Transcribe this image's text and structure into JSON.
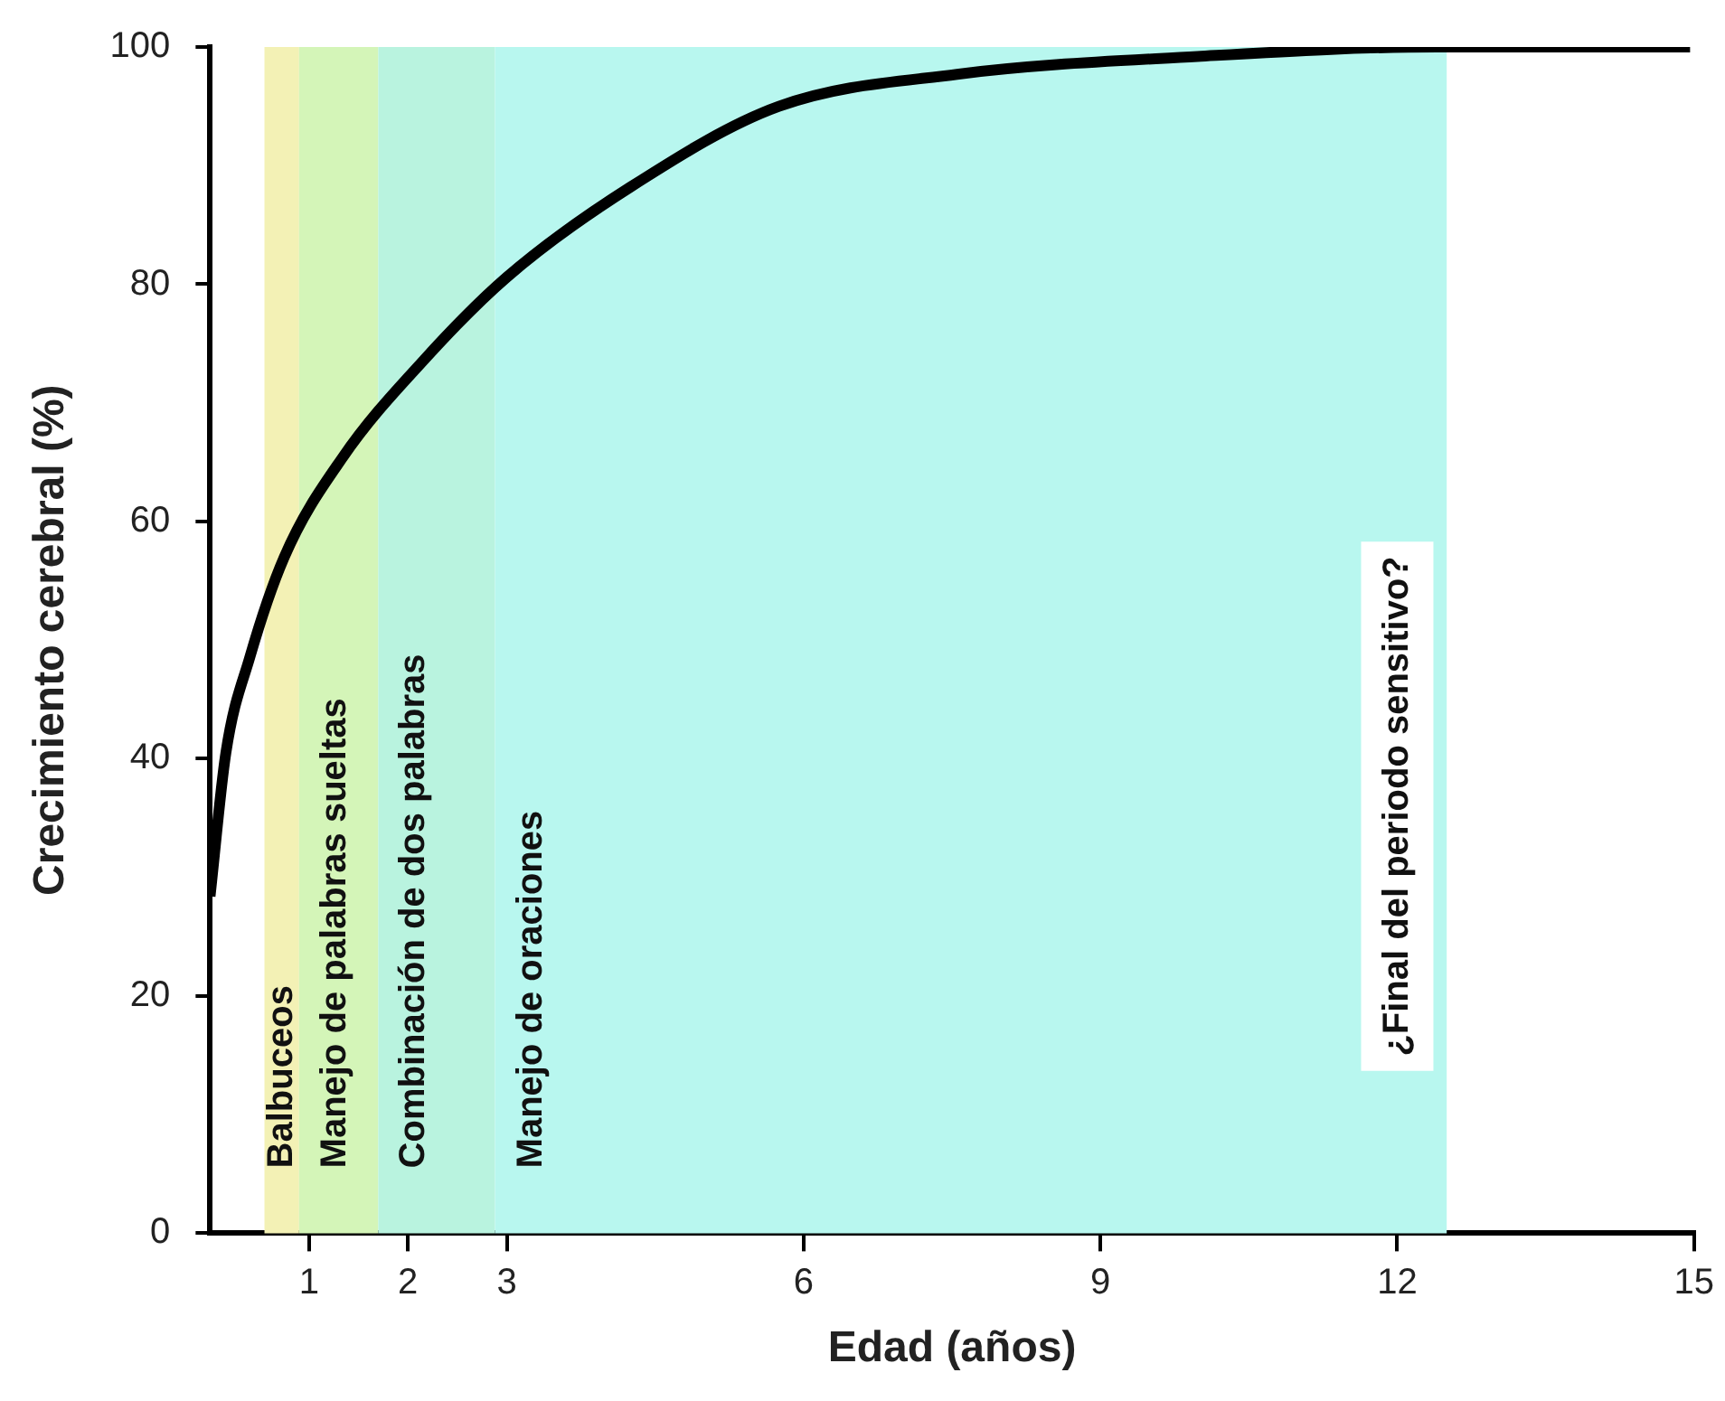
{
  "chart_data": {
    "type": "line",
    "xlabel": "Edad (años)",
    "ylabel": "Crecimiento cerebral (%)",
    "x": [
      0,
      0.16,
      0.4,
      0.75,
      1.34,
      2.16,
      3.0,
      4.25,
      5.75,
      7.55,
      9.98,
      12.4,
      14.96
    ],
    "series": [
      {
        "color": "#000000",
        "values": [
          28.4,
          40.5,
          48.5,
          57,
          65.4,
          73.6,
          80.6,
          88.2,
          95,
          97.7,
          99.2,
          100,
          100
        ]
      }
    ],
    "xlim": [
      0,
      15
    ],
    "xticks": [
      1,
      2,
      3,
      6,
      9,
      12,
      15
    ],
    "ylim": [
      0,
      100
    ],
    "yticks": [
      0,
      20,
      40,
      60,
      80,
      100
    ],
    "grid": false,
    "legend": false,
    "marker": "none",
    "line_style": "solid",
    "bands": [
      {
        "axis": "x",
        "from": 0.55,
        "to": 0.9,
        "label": "Balbuceos",
        "color": "#f3f1b5"
      },
      {
        "axis": "x",
        "from": 0.9,
        "to": 1.7,
        "label": "Manejo de palabras sueltas",
        "color": "#d4f5b8"
      },
      {
        "axis": "x",
        "from": 1.7,
        "to": 2.88,
        "label": "Combinación de dos palabras",
        "color": "#b9f3df"
      },
      {
        "axis": "x",
        "from": 2.88,
        "to": 12.5,
        "label": "Manejo de oraciones",
        "color": "#b8f7ef"
      }
    ],
    "annotations": [
      "¿Final del periodo sensitivo?"
    ]
  }
}
